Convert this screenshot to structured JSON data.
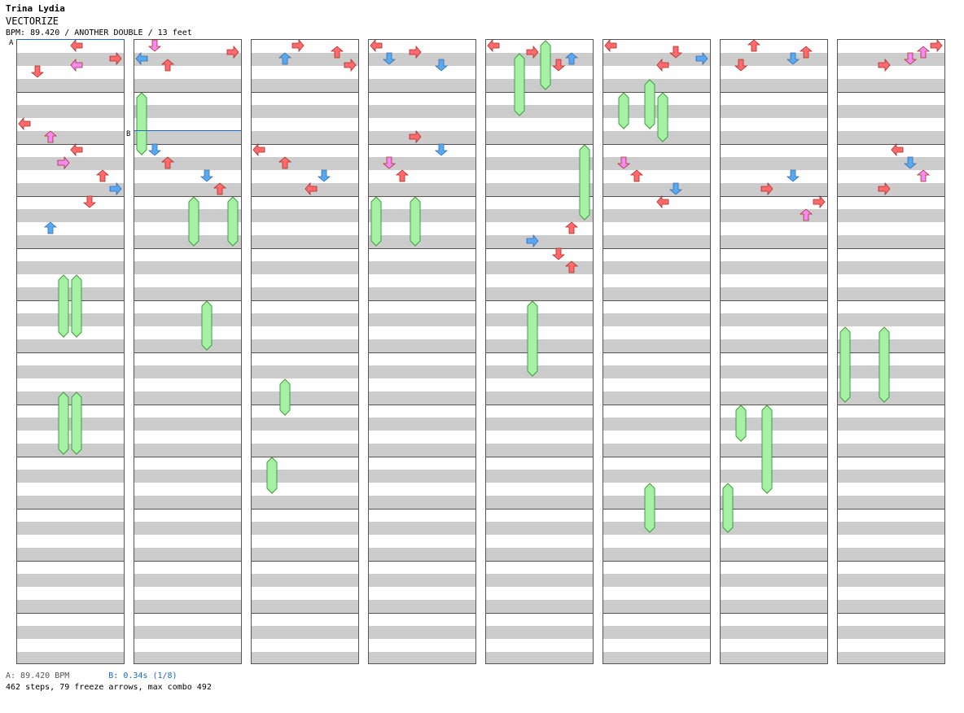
{
  "header": {
    "artist": "Trina Lydia",
    "title": "VECTORIZE",
    "info": "BPM: 89.420 / ANOTHER DOUBLE / 13 feet"
  },
  "footer": {
    "bpm_legend": "A: 89.420 BPM",
    "stop_legend": "B: 0.34s (1/8)",
    "stats": "462 steps, 79 freeze arrows, max combo 492"
  },
  "markers": [
    {
      "label": "A",
      "column": 0,
      "beat": 0
    },
    {
      "label": "B",
      "column": 1,
      "beat": 7
    }
  ],
  "colors": {
    "quarter": "#ff6b6b",
    "eighth": "#5aa9f0",
    "sixteenth": "#f28af2",
    "freeze": "#a6f0a6",
    "stripe": "#cccccc",
    "border": "#555555"
  },
  "chart_data": {
    "type": "table",
    "columns": 8,
    "measures_per_column": 12,
    "panels": [
      "L",
      "D",
      "U",
      "R",
      "L",
      "D",
      "U",
      "R"
    ],
    "notes": [
      [
        0,
        0,
        4,
        "q"
      ],
      [
        0,
        1,
        7,
        "q"
      ],
      [
        0,
        1.5,
        4,
        "s"
      ],
      [
        0,
        2,
        1,
        "q"
      ],
      [
        1,
        0,
        1,
        "s"
      ],
      [
        1,
        0.5,
        7,
        "q"
      ],
      [
        1,
        1,
        0,
        "e"
      ],
      [
        1,
        1.5,
        2,
        "q"
      ],
      [
        2,
        0,
        3,
        "q"
      ],
      [
        2,
        0.5,
        6,
        "q"
      ],
      [
        2,
        1,
        2,
        "e"
      ],
      [
        2,
        1.5,
        7,
        "q"
      ],
      [
        3,
        0,
        0,
        "q"
      ],
      [
        3,
        0.5,
        3,
        "q"
      ],
      [
        3,
        1,
        1,
        "e"
      ],
      [
        3,
        1.5,
        5,
        "e"
      ],
      [
        4,
        0,
        0,
        "q"
      ],
      [
        4,
        0.5,
        3,
        "q"
      ],
      [
        4,
        1,
        6,
        "e"
      ],
      [
        4,
        1.5,
        5,
        "q"
      ],
      [
        5,
        0,
        0,
        "q"
      ],
      [
        5,
        0.5,
        5,
        "q"
      ],
      [
        5,
        1,
        7,
        "e"
      ],
      [
        5,
        1.5,
        4,
        "q"
      ],
      [
        6,
        0,
        2,
        "q"
      ],
      [
        6,
        0.5,
        6,
        "q"
      ],
      [
        6,
        1,
        5,
        "e"
      ],
      [
        6,
        1.5,
        1,
        "q"
      ],
      [
        7,
        0,
        7,
        "q"
      ],
      [
        7,
        0.5,
        6,
        "s"
      ],
      [
        7,
        1,
        5,
        "s"
      ],
      [
        7,
        1.5,
        3,
        "q"
      ],
      [
        0,
        6,
        0,
        "q"
      ],
      [
        0,
        7,
        2,
        "s"
      ],
      [
        0,
        8,
        4,
        "q"
      ],
      [
        0,
        9,
        3,
        "s"
      ],
      [
        0,
        10,
        6,
        "q"
      ],
      [
        0,
        11,
        7,
        "e"
      ],
      [
        0,
        12,
        5,
        "q"
      ],
      [
        0,
        14,
        2,
        "e"
      ],
      [
        1,
        8,
        1,
        "e"
      ],
      [
        1,
        9,
        2,
        "q"
      ],
      [
        1,
        10,
        5,
        "e"
      ],
      [
        1,
        11,
        6,
        "q"
      ],
      [
        2,
        8,
        0,
        "q"
      ],
      [
        2,
        9,
        2,
        "q"
      ],
      [
        2,
        10,
        5,
        "e"
      ],
      [
        2,
        11,
        4,
        "q"
      ],
      [
        3,
        7,
        3,
        "q"
      ],
      [
        3,
        8,
        5,
        "e"
      ],
      [
        3,
        9,
        1,
        "s"
      ],
      [
        3,
        10,
        2,
        "q"
      ],
      [
        4,
        14,
        6,
        "q"
      ],
      [
        4,
        15,
        3,
        "e"
      ],
      [
        4,
        16,
        5,
        "q"
      ],
      [
        4,
        17,
        6,
        "q"
      ],
      [
        5,
        9,
        1,
        "s"
      ],
      [
        5,
        10,
        2,
        "q"
      ],
      [
        5,
        11,
        5,
        "e"
      ],
      [
        5,
        12,
        4,
        "q"
      ],
      [
        6,
        10,
        5,
        "e"
      ],
      [
        6,
        11,
        3,
        "q"
      ],
      [
        6,
        12,
        7,
        "q"
      ],
      [
        6,
        13,
        6,
        "s"
      ],
      [
        7,
        8,
        4,
        "q"
      ],
      [
        7,
        9,
        5,
        "e"
      ],
      [
        7,
        10,
        6,
        "s"
      ],
      [
        7,
        11,
        3,
        "q"
      ]
    ],
    "freezes": [
      [
        0,
        18,
        3,
        4
      ],
      [
        0,
        18,
        4,
        4
      ],
      [
        0,
        27,
        3,
        4
      ],
      [
        0,
        27,
        4,
        4
      ],
      [
        1,
        4,
        0,
        4
      ],
      [
        1,
        12,
        4,
        3
      ],
      [
        1,
        12,
        7,
        3
      ],
      [
        1,
        20,
        5,
        3
      ],
      [
        2,
        26,
        2,
        2
      ],
      [
        2,
        32,
        1,
        2
      ],
      [
        3,
        12,
        0,
        3
      ],
      [
        3,
        12,
        3,
        3
      ],
      [
        4,
        1,
        2,
        4
      ],
      [
        4,
        0,
        4,
        3
      ],
      [
        4,
        8,
        7,
        5
      ],
      [
        4,
        20,
        3,
        5
      ],
      [
        5,
        4,
        1,
        2
      ],
      [
        5,
        3,
        3,
        3
      ],
      [
        5,
        4,
        4,
        3
      ],
      [
        5,
        34,
        3,
        3
      ],
      [
        6,
        28,
        1,
        2
      ],
      [
        6,
        28,
        3,
        6
      ],
      [
        6,
        34,
        0,
        3
      ],
      [
        7,
        22,
        0,
        5
      ],
      [
        7,
        22,
        3,
        5
      ]
    ]
  }
}
